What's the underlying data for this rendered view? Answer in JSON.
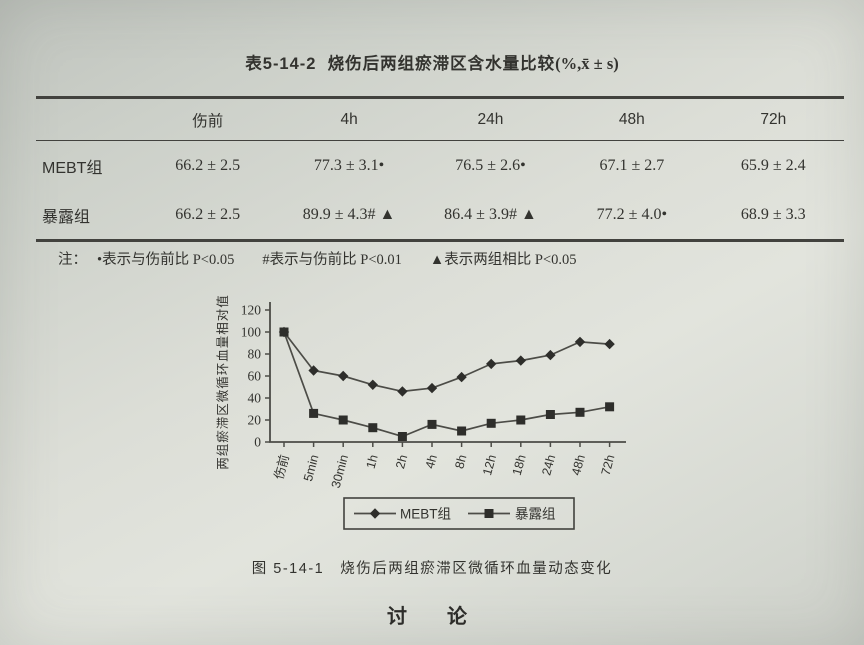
{
  "table_section": {
    "label": "表5-14-2",
    "title": "烧伤后两组瘀滞区含水量比较",
    "units": "(%,x̄ ± s)",
    "columns": [
      "",
      "伤前",
      "4h",
      "24h",
      "48h",
      "72h"
    ],
    "rows": [
      {
        "name": "MEBT组",
        "cells": [
          "66.2 ± 2.5",
          "77.3 ± 3.1•",
          "76.5 ± 2.6•",
          "67.1 ± 2.7",
          "65.9 ± 2.4"
        ]
      },
      {
        "name": "暴露组",
        "cells": [
          "66.2 ± 2.5",
          "89.9 ± 4.3# ▲",
          "86.4 ± 3.9# ▲",
          "77.2 ± 4.0•",
          "68.9 ± 3.3"
        ]
      }
    ],
    "note_label": "注：",
    "notes": [
      "•表示与伤前比 P<0.05",
      "#表示与伤前比 P<0.01",
      "▲表示两组相比 P<0.05"
    ]
  },
  "figure": {
    "caption": "图  5-14-1　烧伤后两组瘀滞区微循环血量动态变化"
  },
  "discussion_heading": "讨　论",
  "chart_data": {
    "type": "line",
    "categories": [
      "伤前",
      "5min",
      "30min",
      "1h",
      "2h",
      "4h",
      "8h",
      "12h",
      "18h",
      "24h",
      "48h",
      "72h"
    ],
    "series": [
      {
        "name": "MEBT组",
        "marker": "diamond",
        "values": [
          100,
          65,
          60,
          52,
          46,
          49,
          59,
          71,
          74,
          79,
          91,
          89
        ]
      },
      {
        "name": "暴露组",
        "marker": "square",
        "values": [
          100,
          26,
          20,
          13,
          5,
          16,
          10,
          17,
          20,
          25,
          27,
          32
        ]
      }
    ],
    "title": "",
    "xlabel": "",
    "ylabel": "两组瘀滞区微循环血量相对值",
    "ylim": [
      0,
      120
    ],
    "ytick_step": 20,
    "grid": false,
    "legend_position": "bottom",
    "line_color": "#4c4c47",
    "marker_color": "#2e2e2b"
  }
}
